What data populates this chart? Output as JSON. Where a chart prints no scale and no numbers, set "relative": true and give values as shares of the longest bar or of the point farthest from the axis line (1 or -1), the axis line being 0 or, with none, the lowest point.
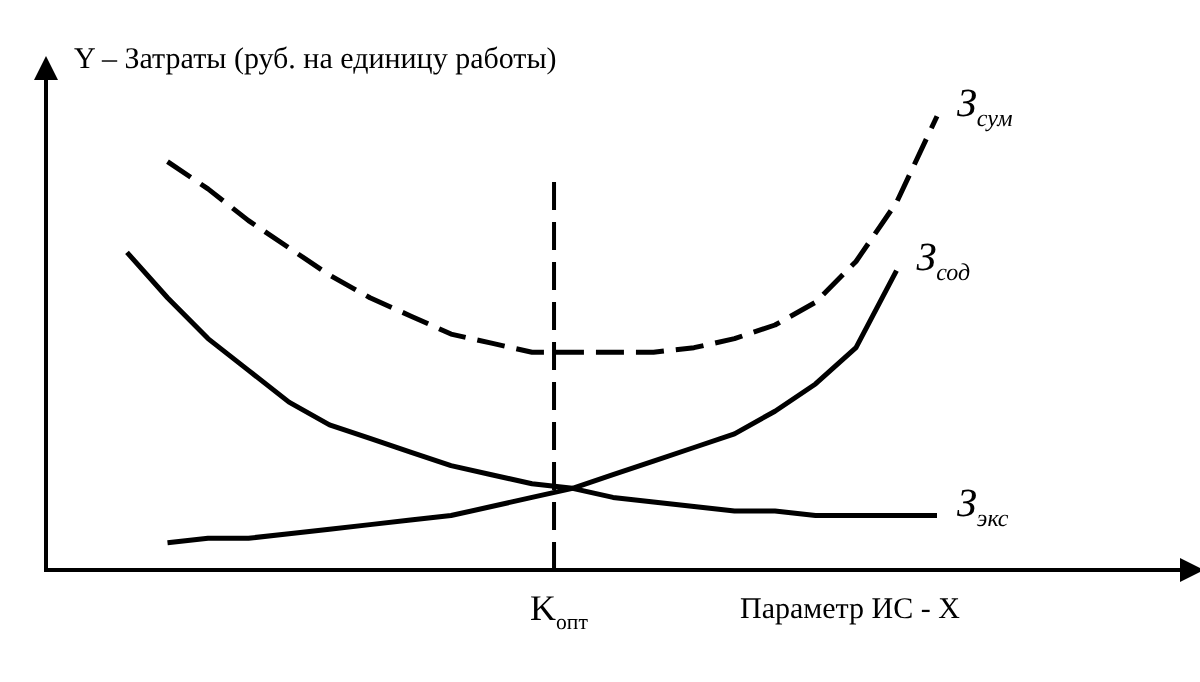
{
  "chart_data": {
    "type": "line",
    "relative": true,
    "ylabel": "Y – Затраты (руб. на единицу работы)",
    "xlabel": "Параметр ИС - X",
    "categories": [
      null,
      null,
      null,
      null,
      null,
      null,
      null,
      null,
      null,
      null,
      null,
      null,
      null,
      null,
      null,
      null,
      null,
      null,
      null,
      null,
      null,
      null,
      null,
      null,
      null,
      null,
      null,
      null,
      null
    ],
    "grid": false,
    "legend": false,
    "marker": "none",
    "annotations": [
      "K$_{опт}$"
    ],
    "series": [
      {
        "name": "З$_{сум}$",
        "color": "#000000",
        "line_style": "dashed",
        "values": [
          null,
          null,
          null,
          0.9,
          0.84,
          0.77,
          0.71,
          0.65,
          0.6,
          0.56,
          0.52,
          0.5,
          0.48,
          0.48,
          0.48,
          0.48,
          0.49,
          0.51,
          0.54,
          0.59,
          0.68,
          0.81,
          1.0,
          null,
          null,
          null,
          null,
          null,
          null
        ]
      },
      {
        "name": "З$_{сод}$",
        "color": "#000000",
        "line_style": "solid",
        "values": [
          null,
          null,
          null,
          0.06,
          0.07,
          0.07,
          0.08,
          0.09,
          0.1,
          0.11,
          0.12,
          0.14,
          0.16,
          0.18,
          0.21,
          0.24,
          0.27,
          0.3,
          0.35,
          0.41,
          0.49,
          0.66,
          null,
          null,
          null,
          null,
          null,
          null,
          null
        ]
      },
      {
        "name": "З$_{экс}$",
        "color": "#000000",
        "line_style": "solid",
        "values": [
          null,
          null,
          0.7,
          0.6,
          0.51,
          0.44,
          0.37,
          0.32,
          0.29,
          0.26,
          0.23,
          0.21,
          0.19,
          0.18,
          0.16,
          0.15,
          0.14,
          0.13,
          0.13,
          0.12,
          0.12,
          0.12,
          0.12,
          null,
          null,
          null,
          null,
          null,
          null
        ]
      }
    ]
  }
}
